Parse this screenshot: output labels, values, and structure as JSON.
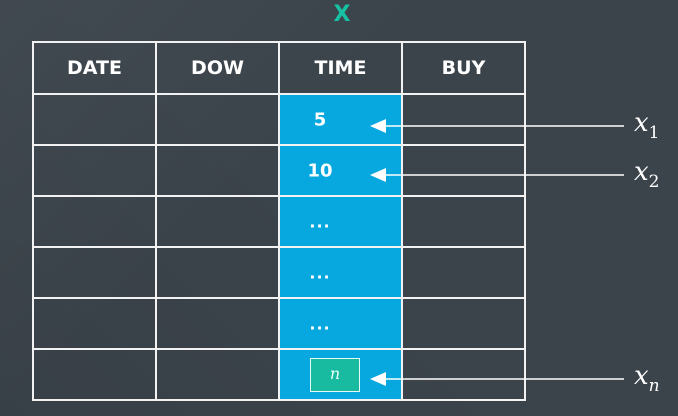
{
  "title": "X",
  "table": {
    "headers": [
      "DATE",
      "DOW",
      "TIME",
      "BUY"
    ],
    "time_column": [
      "5",
      "10",
      "...",
      "...",
      "...",
      "n"
    ],
    "rows": 6
  },
  "labels": {
    "x1_var": "x",
    "x1_sub": "1",
    "x2_var": "x",
    "x2_sub": "2",
    "xn_var": "x",
    "xn_sub": "n"
  },
  "colors": {
    "background": "#3b434b",
    "title": "#16c2a3",
    "time_column": "#07a8df",
    "highlight_box": "#18bba0",
    "lines": "#f2f2f2"
  }
}
